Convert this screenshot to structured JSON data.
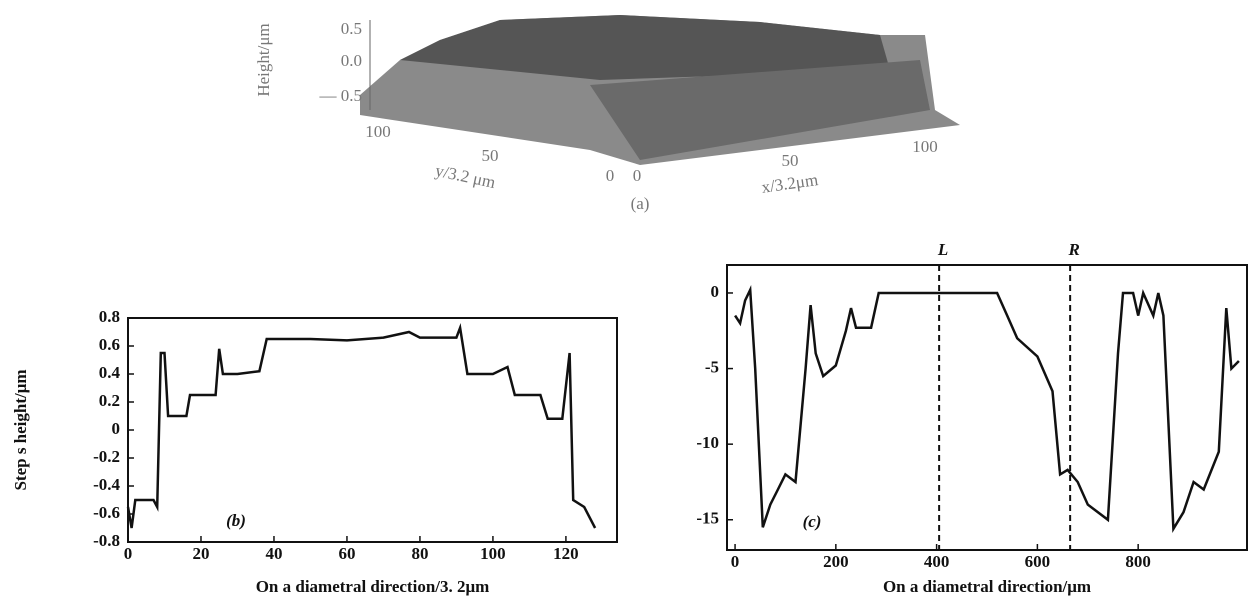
{
  "chart_data": [
    {
      "type": "surface3d",
      "caption": "(a)",
      "zlabel": "Height/μm",
      "zticks": [
        0.5,
        {
          "value": 0,
          "label": "0.0"
        },
        {
          "value": -0.5,
          "label": "— 0.5"
        }
      ],
      "ylabel": "y/3.2 μm",
      "yticks": [
        100,
        50,
        0
      ],
      "xlabel": "x/3.2μm",
      "xticks": [
        0,
        50,
        100
      ]
    },
    {
      "type": "line",
      "annotation": "(b)",
      "xlabel": "On a diametral direction/3. 2μm",
      "ylabel": "Step s height/μm",
      "color": "#111111",
      "xlim": [
        0,
        134
      ],
      "ylim": [
        -0.8,
        0.8
      ],
      "xticks": [
        0,
        20,
        40,
        60,
        80,
        100,
        120
      ],
      "yticks": [
        0.8,
        0.6,
        0.4,
        0.2,
        0,
        -0.2,
        -0.4,
        -0.6,
        -0.8
      ],
      "x": [
        0,
        1,
        2,
        4,
        7,
        8,
        9,
        10,
        11,
        14,
        16,
        17,
        24,
        25,
        26,
        30,
        36,
        38,
        50,
        60,
        70,
        77,
        80,
        90,
        91,
        93,
        100,
        104,
        106,
        113,
        115,
        119,
        121,
        122,
        125,
        128
      ],
      "values": [
        -0.55,
        -0.7,
        -0.5,
        -0.5,
        -0.5,
        -0.55,
        0.55,
        0.55,
        0.1,
        0.1,
        0.1,
        0.25,
        0.25,
        0.58,
        0.4,
        0.4,
        0.42,
        0.65,
        0.65,
        0.64,
        0.66,
        0.7,
        0.66,
        0.66,
        0.73,
        0.4,
        0.4,
        0.45,
        0.25,
        0.25,
        0.08,
        0.08,
        0.55,
        -0.5,
        -0.55,
        -0.7
      ]
    },
    {
      "type": "line",
      "annotation": "(c)",
      "xlabel": "On a diametral direction/μm",
      "color": "#111111",
      "xlim": [
        -16,
        1016
      ],
      "ylim": [
        -17,
        1.85
      ],
      "xticks": [
        0,
        200,
        400,
        600,
        800
      ],
      "yticks": [
        0,
        -5,
        -10,
        -15
      ],
      "vlines": [
        {
          "x": 405,
          "label": "L"
        },
        {
          "x": 665,
          "label": "R"
        }
      ],
      "x": [
        0,
        10,
        20,
        30,
        40,
        55,
        70,
        85,
        100,
        120,
        140,
        150,
        160,
        175,
        200,
        220,
        230,
        240,
        270,
        285,
        520,
        540,
        560,
        600,
        630,
        645,
        660,
        680,
        700,
        740,
        760,
        770,
        790,
        800,
        810,
        830,
        840,
        850,
        870,
        890,
        910,
        930,
        960,
        975,
        985,
        1000
      ],
      "values": [
        -1.5,
        -2,
        -0.5,
        0.2,
        -5,
        -15.5,
        -14,
        -13,
        -12,
        -12.5,
        -5,
        -0.8,
        -4,
        -5.5,
        -4.8,
        -2.5,
        -1,
        -2.3,
        -2.3,
        0,
        0,
        -1.5,
        -3,
        -4.2,
        -6.5,
        -12,
        -11.7,
        -12.5,
        -14,
        -15,
        -4,
        0,
        0,
        -1.5,
        0,
        -1.5,
        0,
        -1.5,
        -15.6,
        -14.5,
        -12.5,
        -13,
        -10.5,
        -1,
        -5,
        -4.5
      ]
    }
  ]
}
